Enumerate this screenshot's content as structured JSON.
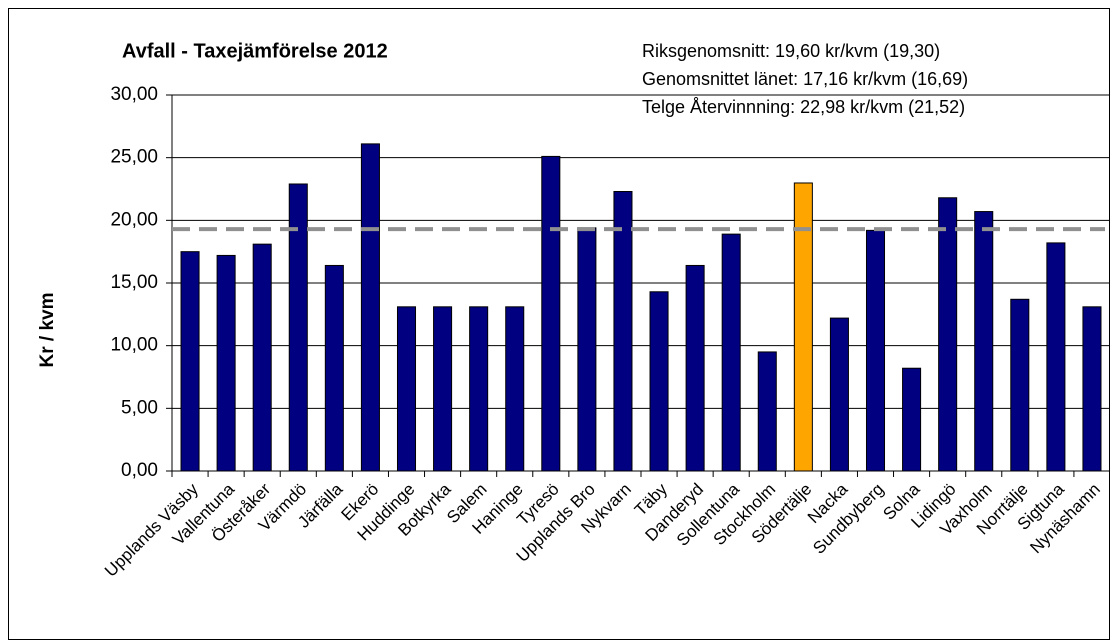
{
  "chart_data": {
    "type": "bar",
    "title": "Avfall - Taxejämförelse 2012",
    "ylabel": "Kr / kvm",
    "annotations": [
      "Riksgenomsnitt: 19,60 kr/kvm (19,30)",
      "Genomsnittet länet: 17,16 kr/kvm (16,69)",
      "Telge Återvinnning: 22,98 kr/kvm (21,52)"
    ],
    "categories": [
      "Upplands Väsby",
      "Vallentuna",
      "Österåker",
      "Värmdö",
      "Järfälla",
      "Ekerö",
      "Huddinge",
      "Botkyrka",
      "Salem",
      "Haninge",
      "Tyresö",
      "Upplands Bro",
      "Nykvarn",
      "Täby",
      "Danderyd",
      "Sollentuna",
      "Stockholm",
      "Södertälje",
      "Nacka",
      "Sundbyberg",
      "Solna",
      "Lidingö",
      "Vaxholm",
      "Norrtälje",
      "Sigtuna",
      "Nynäshamn"
    ],
    "values": [
      17.5,
      17.2,
      18.1,
      22.9,
      16.4,
      26.1,
      13.1,
      13.1,
      13.1,
      13.1,
      25.1,
      19.4,
      22.3,
      14.3,
      16.4,
      18.9,
      9.5,
      22.98,
      12.2,
      19.2,
      8.2,
      21.8,
      20.7,
      13.7,
      18.2,
      13.1
    ],
    "colors": [
      "#000080",
      "#000080",
      "#000080",
      "#000080",
      "#000080",
      "#000080",
      "#000080",
      "#000080",
      "#000080",
      "#000080",
      "#000080",
      "#000080",
      "#000080",
      "#000080",
      "#000080",
      "#000080",
      "#000080",
      "#ffa500",
      "#000080",
      "#000080",
      "#000080",
      "#000080",
      "#000080",
      "#000080",
      "#000080",
      "#000080"
    ],
    "reference_line": {
      "value": 19.3,
      "color": "#909090"
    },
    "ylim": [
      0,
      30
    ],
    "yticks": [
      {
        "value": 0,
        "label": "0,00"
      },
      {
        "value": 5,
        "label": "5,00"
      },
      {
        "value": 10,
        "label": "10,00"
      },
      {
        "value": 15,
        "label": "15,00"
      },
      {
        "value": 20,
        "label": "20,00"
      },
      {
        "value": 25,
        "label": "25,00"
      },
      {
        "value": 30,
        "label": "30,00"
      }
    ],
    "grid": true
  }
}
